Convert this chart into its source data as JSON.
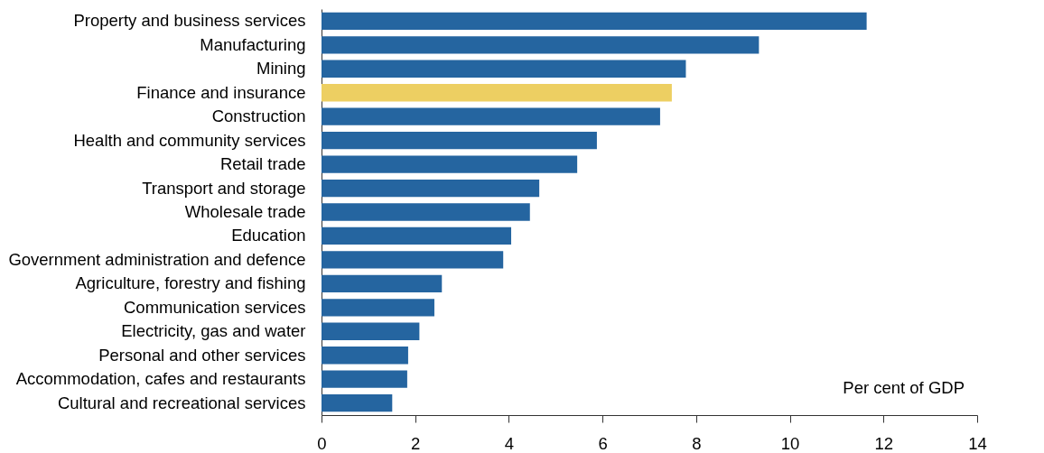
{
  "chart_data": {
    "type": "bar",
    "orientation": "horizontal",
    "categories": [
      "Property and business services",
      "Manufacturing",
      "Mining",
      "Finance and insurance",
      "Construction",
      "Health and community services",
      "Retail trade",
      "Transport and storage",
      "Wholesale trade",
      "Education",
      "Government administration and defence",
      "Agriculture, forestry and fishing",
      "Communication services",
      "Electricity, gas and water",
      "Personal and other services",
      "Accommodation, cafes and restaurants",
      "Cultural and recreational services"
    ],
    "values": [
      11.64,
      9.34,
      7.78,
      7.48,
      7.23,
      5.88,
      5.46,
      4.65,
      4.45,
      4.05,
      3.88,
      2.57,
      2.41,
      2.09,
      1.85,
      1.83,
      1.51
    ],
    "colors": [
      "#2565a0",
      "#2565a0",
      "#2565a0",
      "#edcf62",
      "#2565a0",
      "#2565a0",
      "#2565a0",
      "#2565a0",
      "#2565a0",
      "#2565a0",
      "#2565a0",
      "#2565a0",
      "#2565a0",
      "#2565a0",
      "#2565a0",
      "#2565a0",
      "#2565a0"
    ],
    "xlim": [
      0,
      14
    ],
    "xticks": [
      0,
      2,
      4,
      6,
      8,
      10,
      12,
      14
    ],
    "grid": false,
    "legend": false,
    "annotations": [
      "Per cent of GDP"
    ]
  }
}
